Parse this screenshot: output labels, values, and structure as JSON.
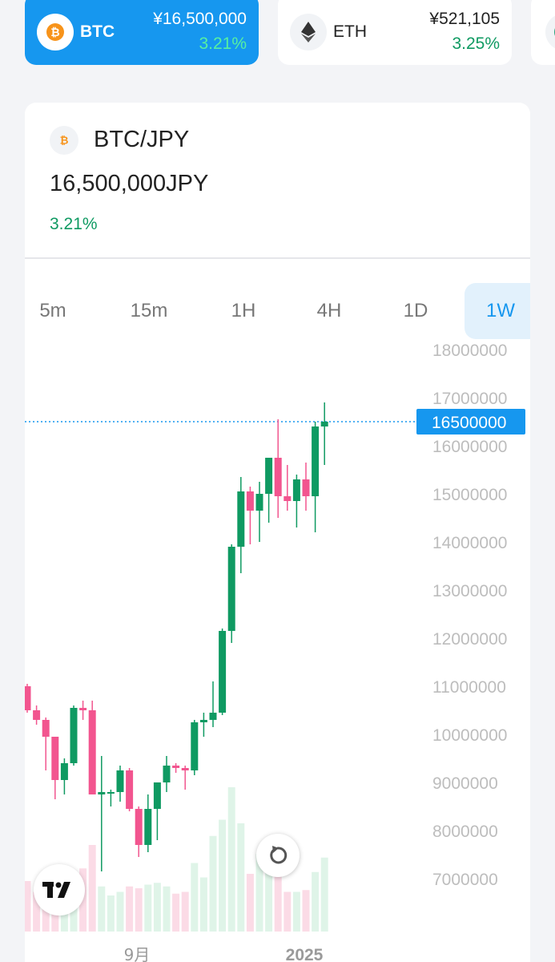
{
  "tickers": [
    {
      "symbol": "BTC",
      "price": "¥16,500,000",
      "change": "3.21%",
      "active": true,
      "icon": "bitcoin-icon"
    },
    {
      "symbol": "ETH",
      "price": "¥521,105",
      "change": "3.25%",
      "active": false,
      "icon": "ethereum-icon"
    }
  ],
  "pair": {
    "name": "BTC/JPY",
    "price": "16,500,000JPY",
    "change": "3.21%"
  },
  "timeframes": [
    {
      "label": "5m",
      "active": false
    },
    {
      "label": "15m",
      "active": false
    },
    {
      "label": "1H",
      "active": false
    },
    {
      "label": "4H",
      "active": false
    },
    {
      "label": "1D",
      "active": false
    },
    {
      "label": "1W",
      "active": true
    }
  ],
  "colors": {
    "accent": "#1697ef",
    "up": "#0f9a62",
    "down": "#f2558f",
    "up_volume": "#dff4e8",
    "down_volume": "#fbdbe6"
  },
  "chart_data": {
    "type": "candlestick",
    "y_ticks": [
      18000000,
      17000000,
      16000000,
      15000000,
      14000000,
      13000000,
      12000000,
      11000000,
      10000000,
      9000000,
      8000000,
      7000000
    ],
    "ylim": [
      6500000,
      18300000
    ],
    "x_tick_labels": [
      "9月",
      "2025"
    ],
    "current_price_label": "16500000",
    "current_price": 16500000,
    "candles": [
      {
        "o": 11000000,
        "h": 11050000,
        "l": 10450000,
        "c": 10500000
      },
      {
        "o": 10500000,
        "h": 10600000,
        "l": 10200000,
        "c": 10300000
      },
      {
        "o": 10300000,
        "h": 10350000,
        "l": 9250000,
        "c": 9950000
      },
      {
        "o": 9950000,
        "h": 9950000,
        "l": 8650000,
        "c": 9050000
      },
      {
        "o": 9050000,
        "h": 9500000,
        "l": 8750000,
        "c": 9400000
      },
      {
        "o": 9400000,
        "h": 10600000,
        "l": 9350000,
        "c": 10550000
      },
      {
        "o": 10550000,
        "h": 10700000,
        "l": 10300000,
        "c": 10500000
      },
      {
        "o": 10500000,
        "h": 10700000,
        "l": 8800000,
        "c": 8750000
      },
      {
        "o": 8750000,
        "h": 9550000,
        "l": 7150000,
        "c": 8800000
      },
      {
        "o": 8800000,
        "h": 8850000,
        "l": 8500000,
        "c": 8800000
      },
      {
        "o": 8800000,
        "h": 9350000,
        "l": 8600000,
        "c": 9250000
      },
      {
        "o": 9250000,
        "h": 9300000,
        "l": 8400000,
        "c": 8450000
      },
      {
        "o": 8450000,
        "h": 8500000,
        "l": 7450000,
        "c": 7700000
      },
      {
        "o": 7700000,
        "h": 8750000,
        "l": 7550000,
        "c": 8450000
      },
      {
        "o": 8450000,
        "h": 9000000,
        "l": 7800000,
        "c": 9000000
      },
      {
        "o": 9000000,
        "h": 9550000,
        "l": 8800000,
        "c": 9350000
      },
      {
        "o": 9350000,
        "h": 9400000,
        "l": 9200000,
        "c": 9300000
      },
      {
        "o": 9300000,
        "h": 9350000,
        "l": 8850000,
        "c": 9250000
      },
      {
        "o": 9250000,
        "h": 10300000,
        "l": 9150000,
        "c": 10250000
      },
      {
        "o": 10250000,
        "h": 10450000,
        "l": 9950000,
        "c": 10300000
      },
      {
        "o": 10300000,
        "h": 11100000,
        "l": 10150000,
        "c": 10450000
      },
      {
        "o": 10450000,
        "h": 12200000,
        "l": 10400000,
        "c": 12150000
      },
      {
        "o": 12150000,
        "h": 13950000,
        "l": 11900000,
        "c": 13900000
      },
      {
        "o": 13900000,
        "h": 15350000,
        "l": 13350000,
        "c": 15050000
      },
      {
        "o": 15050000,
        "h": 15150000,
        "l": 13950000,
        "c": 14650000
      },
      {
        "o": 14650000,
        "h": 15250000,
        "l": 14000000,
        "c": 15000000
      },
      {
        "o": 15000000,
        "h": 15750000,
        "l": 14400000,
        "c": 15750000
      },
      {
        "o": 15750000,
        "h": 16550000,
        "l": 14500000,
        "c": 14950000
      },
      {
        "o": 14950000,
        "h": 15600000,
        "l": 14650000,
        "c": 14850000
      },
      {
        "o": 14850000,
        "h": 15400000,
        "l": 14300000,
        "c": 15300000
      },
      {
        "o": 15300000,
        "h": 15650000,
        "l": 14650000,
        "c": 14950000
      },
      {
        "o": 14950000,
        "h": 16500000,
        "l": 14200000,
        "c": 16400000
      },
      {
        "o": 16400000,
        "h": 16900000,
        "l": 15600000,
        "c": 16500000
      }
    ],
    "volumes": [
      0.28,
      0.22,
      0.25,
      0.28,
      0.3,
      0.32,
      0.35,
      0.48,
      0.25,
      0.2,
      0.22,
      0.25,
      0.24,
      0.26,
      0.27,
      0.25,
      0.21,
      0.22,
      0.38,
      0.3,
      0.53,
      0.62,
      0.8,
      0.6,
      0.32,
      0.43,
      0.35,
      0.35,
      0.22,
      0.22,
      0.23,
      0.33,
      0.41
    ]
  }
}
